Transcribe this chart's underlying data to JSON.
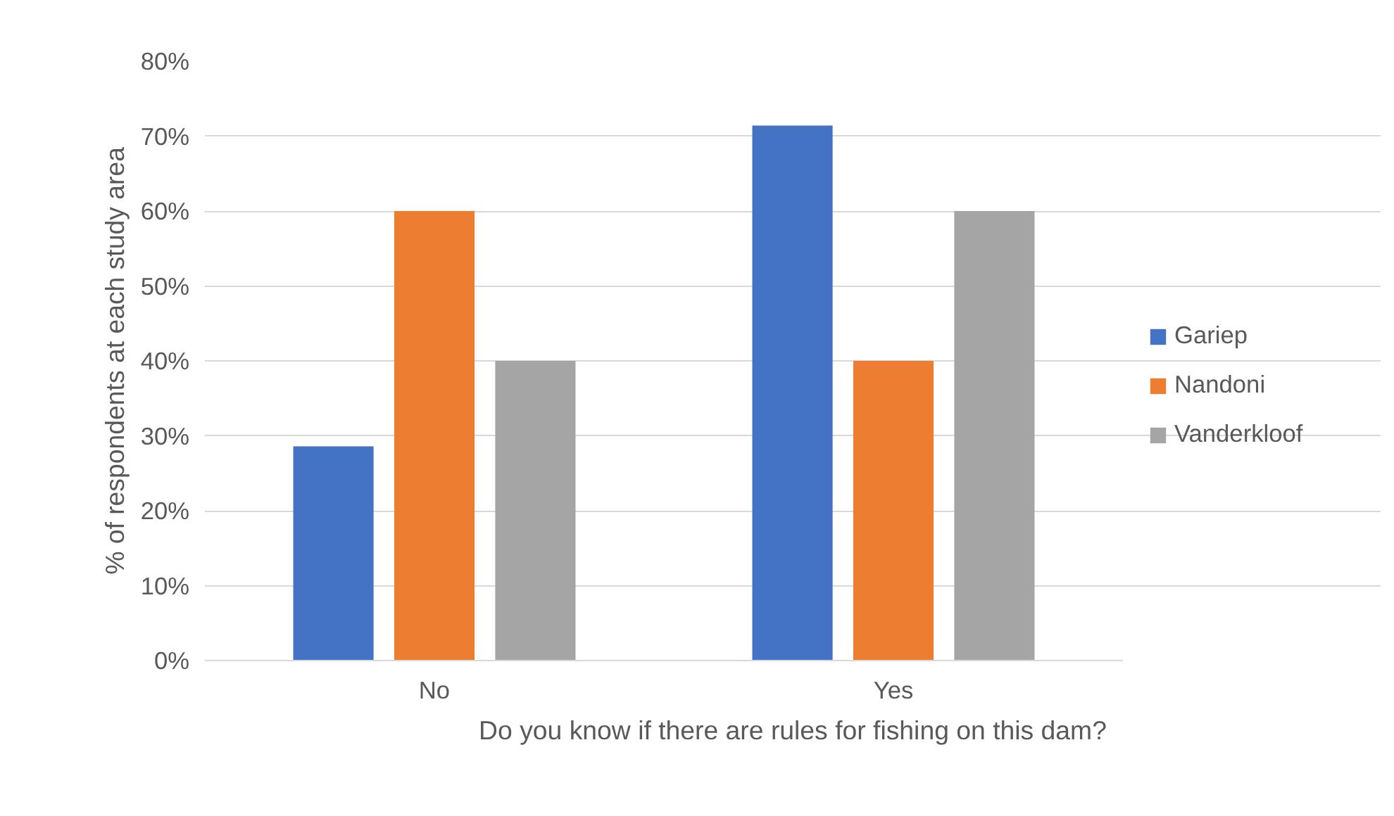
{
  "chart_data": {
    "type": "bar",
    "xlabel": "Do you know if there are rules for fishing on this dam?",
    "ylabel": "% of respondents at each study area",
    "categories": [
      "No",
      "Yes"
    ],
    "series": [
      {
        "name": "Gariep",
        "color": "#4472c4",
        "values": [
          28.6,
          71.4
        ]
      },
      {
        "name": "Nandoni",
        "color": "#ed7d31",
        "values": [
          60,
          40
        ]
      },
      {
        "name": "Vanderkloof",
        "color": "#a5a5a5",
        "values": [
          40,
          60
        ]
      }
    ],
    "ylim": [
      0,
      80
    ],
    "yticks": [
      {
        "value": 0,
        "label": "0%"
      },
      {
        "value": 10,
        "label": "10%"
      },
      {
        "value": 20,
        "label": "20%"
      },
      {
        "value": 30,
        "label": "30%"
      },
      {
        "value": 40,
        "label": "40%"
      },
      {
        "value": 50,
        "label": "50%"
      },
      {
        "value": 60,
        "label": "60%"
      },
      {
        "value": 70,
        "label": "70%"
      },
      {
        "value": 80,
        "label": "80%"
      }
    ],
    "grid": "y",
    "legend": "right"
  }
}
